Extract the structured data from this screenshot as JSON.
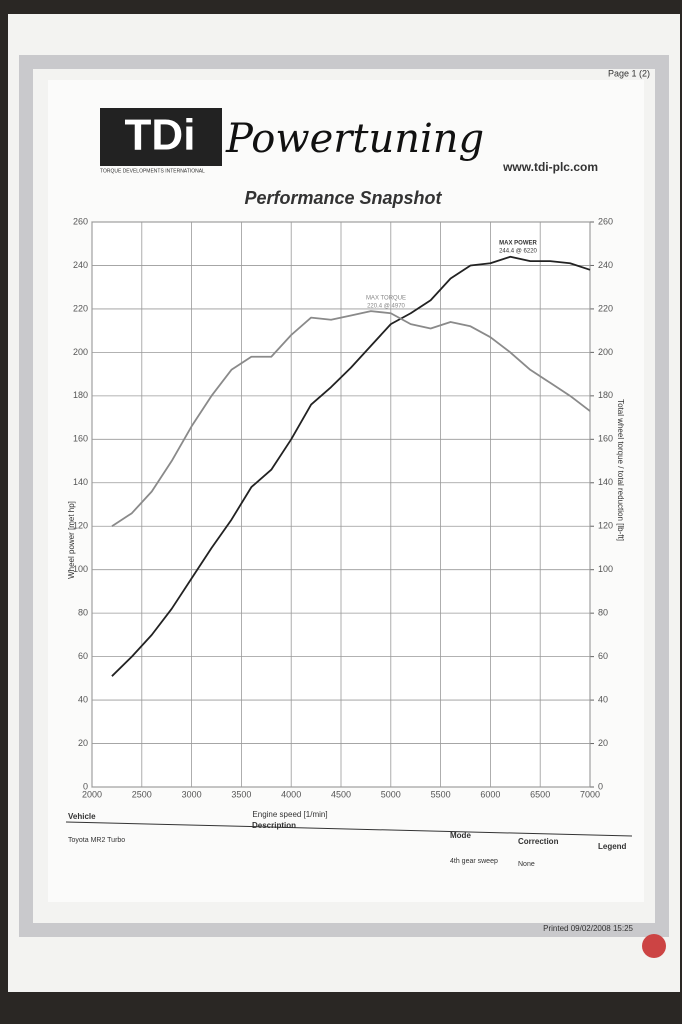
{
  "header": {
    "logo": "TDi",
    "brand": "Powertuning",
    "tagline": "TORQUE DEVELOPMENTS INTERNATIONAL",
    "url": "www.tdi-plc.com",
    "page": "Page 1 (2)"
  },
  "chart_data": {
    "type": "line",
    "title": "Performance Snapshot",
    "x_label": "Engine speed [1/min]",
    "y_label": "Wheel power [met hp]",
    "y2_label": "Total wheel torque / total reduction [lb-ft]",
    "x": [
      2200,
      2400,
      2600,
      2800,
      3000,
      3200,
      3400,
      3600,
      3800,
      4000,
      4200,
      4400,
      4600,
      4800,
      5000,
      5200,
      5400,
      5600,
      5800,
      6000,
      6200,
      6400,
      6600,
      6800,
      7000
    ],
    "series": [
      {
        "color": "#222222",
        "values": [
          51,
          60,
          70,
          82,
          96,
          110,
          123,
          138,
          146,
          160,
          176,
          184,
          193,
          203,
          213,
          218,
          224,
          234,
          240,
          241,
          244,
          242,
          242,
          241,
          238
        ]
      },
      {
        "color": "#8a8a8a",
        "axis": "y2",
        "values": [
          120,
          126,
          136,
          150,
          166,
          180,
          192,
          198,
          198,
          208,
          216,
          215,
          217,
          219,
          218,
          213,
          211,
          214,
          212,
          207,
          200,
          192,
          186,
          180,
          173
        ]
      }
    ],
    "xlim": [
      2000,
      7000
    ],
    "xticks": [
      2000,
      2500,
      3000,
      3500,
      4000,
      4500,
      5000,
      5500,
      6000,
      6500,
      7000
    ],
    "ylim": [
      0,
      260
    ],
    "yticks": [
      0,
      20,
      40,
      60,
      80,
      100,
      120,
      140,
      160,
      180,
      200,
      220,
      240,
      260
    ],
    "y2lim": [
      0,
      260
    ],
    "y2ticks": [
      0,
      20,
      40,
      60,
      80,
      100,
      120,
      140,
      160,
      180,
      200,
      220,
      240,
      260
    ],
    "grid": true,
    "annotations": [
      "MAX POWER",
      "244.4 @ 6220",
      "MAX TORQUE",
      "220.4 @ 4970"
    ]
  },
  "table": {
    "headers": [
      "Vehicle",
      "Description",
      "Mode",
      "Correction",
      "Legend"
    ],
    "vehicle": "Toyota MR2 Turbo",
    "mode": "4th gear sweep",
    "correction": "None"
  },
  "footer": {
    "printed": "Printed 09/02/2008 15:25"
  }
}
